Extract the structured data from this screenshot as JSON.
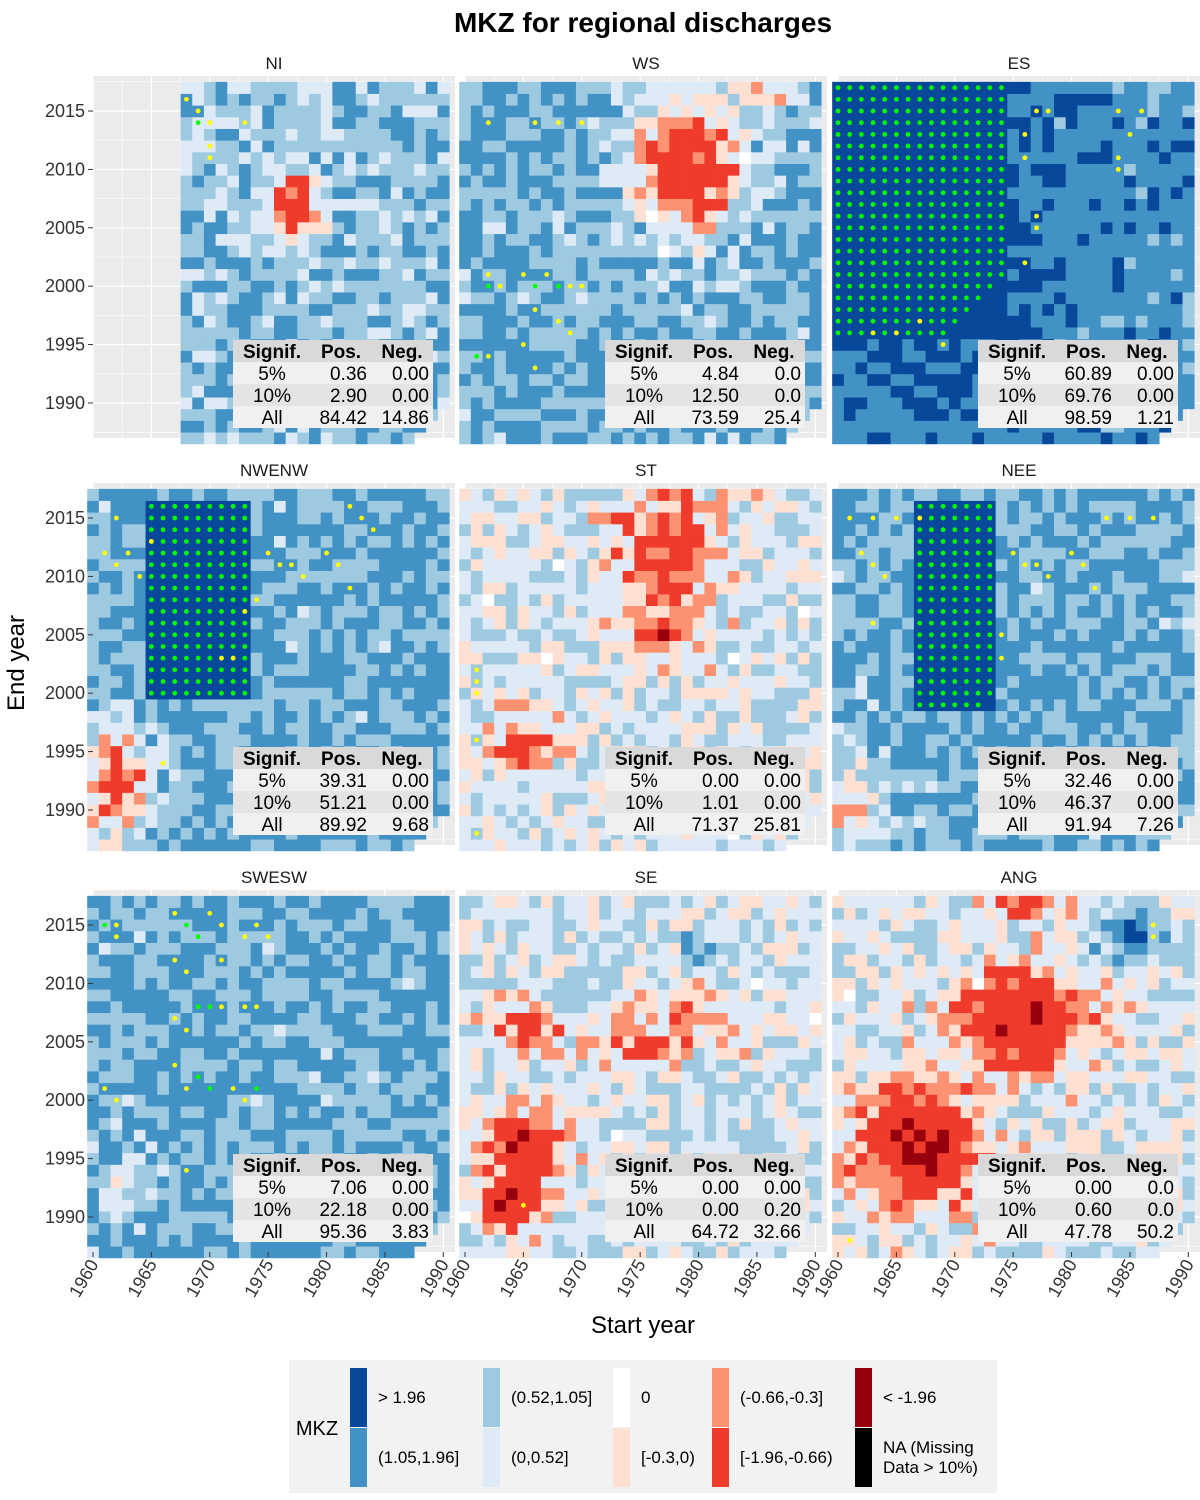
{
  "chart_data": {
    "type": "heatmap",
    "title": "MKZ for regional discharges",
    "xlabel": "Start year",
    "ylabel": "End year",
    "xlim": [
      1960,
      1991
    ],
    "ylim": [
      1987,
      2018
    ],
    "x_ticks": [
      "1960",
      "1965",
      "1970",
      "1975",
      "1980",
      "1985",
      "1990"
    ],
    "y_ticks": [
      "1990",
      "1995",
      "2000",
      "2005",
      "2010",
      "2015"
    ],
    "legend": {
      "title": "MKZ",
      "entries": [
        {
          "label": "> 1.96",
          "color": "#08489A"
        },
        {
          "label": "(1.05,1.96]",
          "color": "#4292C6"
        },
        {
          "label": "(0.52,1.05]",
          "color": "#9ECAE1"
        },
        {
          "label": "(0,0.52]",
          "color": "#DEEBF7"
        },
        {
          "label": "0",
          "color": "#FFFFFF"
        },
        {
          "label": "[-0.3,0)",
          "color": "#FEE0D2"
        },
        {
          "label": "(-0.66,-0.3]",
          "color": "#FC9272"
        },
        {
          "label": "[-1.96,-0.66)",
          "color": "#EF3B2C"
        },
        {
          "label": "< -1.96",
          "color": "#99000D"
        },
        {
          "label": "NA (Missing\nData > 10%)",
          "color": "#000000"
        }
      ]
    },
    "significance_markers": {
      "p10": "#FFFF00",
      "p5": "#00FF00"
    },
    "table_headers": [
      "Signif.",
      "Pos.",
      "Neg."
    ],
    "panels": [
      {
        "name": "NI",
        "rows": [
          [
            "5%",
            "0.36",
            "0.00"
          ],
          [
            "10%",
            "2.90",
            "0.00"
          ],
          [
            "All",
            "84.42",
            "14.86"
          ]
        ]
      },
      {
        "name": "WS",
        "rows": [
          [
            "5%",
            "4.84",
            "0.0"
          ],
          [
            "10%",
            "12.50",
            "0.0"
          ],
          [
            "All",
            "73.59",
            "25.4"
          ]
        ]
      },
      {
        "name": "ES",
        "rows": [
          [
            "5%",
            "60.89",
            "0.00"
          ],
          [
            "10%",
            "69.76",
            "0.00"
          ],
          [
            "All",
            "98.59",
            "1.21"
          ]
        ]
      },
      {
        "name": "NWENW",
        "rows": [
          [
            "5%",
            "39.31",
            "0.00"
          ],
          [
            "10%",
            "51.21",
            "0.00"
          ],
          [
            "All",
            "89.92",
            "9.68"
          ]
        ]
      },
      {
        "name": "ST",
        "rows": [
          [
            "5%",
            "0.00",
            "0.00"
          ],
          [
            "10%",
            "1.01",
            "0.00"
          ],
          [
            "All",
            "71.37",
            "25.81"
          ]
        ]
      },
      {
        "name": "NEE",
        "rows": [
          [
            "5%",
            "32.46",
            "0.00"
          ],
          [
            "10%",
            "46.37",
            "0.00"
          ],
          [
            "All",
            "91.94",
            "7.26"
          ]
        ]
      },
      {
        "name": "SWESW",
        "rows": [
          [
            "5%",
            "7.06",
            "0.00"
          ],
          [
            "10%",
            "22.18",
            "0.00"
          ],
          [
            "All",
            "95.36",
            "3.83"
          ]
        ]
      },
      {
        "name": "SE",
        "rows": [
          [
            "5%",
            "0.00",
            "0.00"
          ],
          [
            "10%",
            "0.00",
            "0.20"
          ],
          [
            "All",
            "64.72",
            "32.66"
          ]
        ]
      },
      {
        "name": "ANG",
        "rows": [
          [
            "5%",
            "0.00",
            "0.0"
          ],
          [
            "10%",
            "0.60",
            "0.0"
          ],
          [
            "All",
            "47.78",
            "50.2"
          ]
        ]
      }
    ]
  }
}
